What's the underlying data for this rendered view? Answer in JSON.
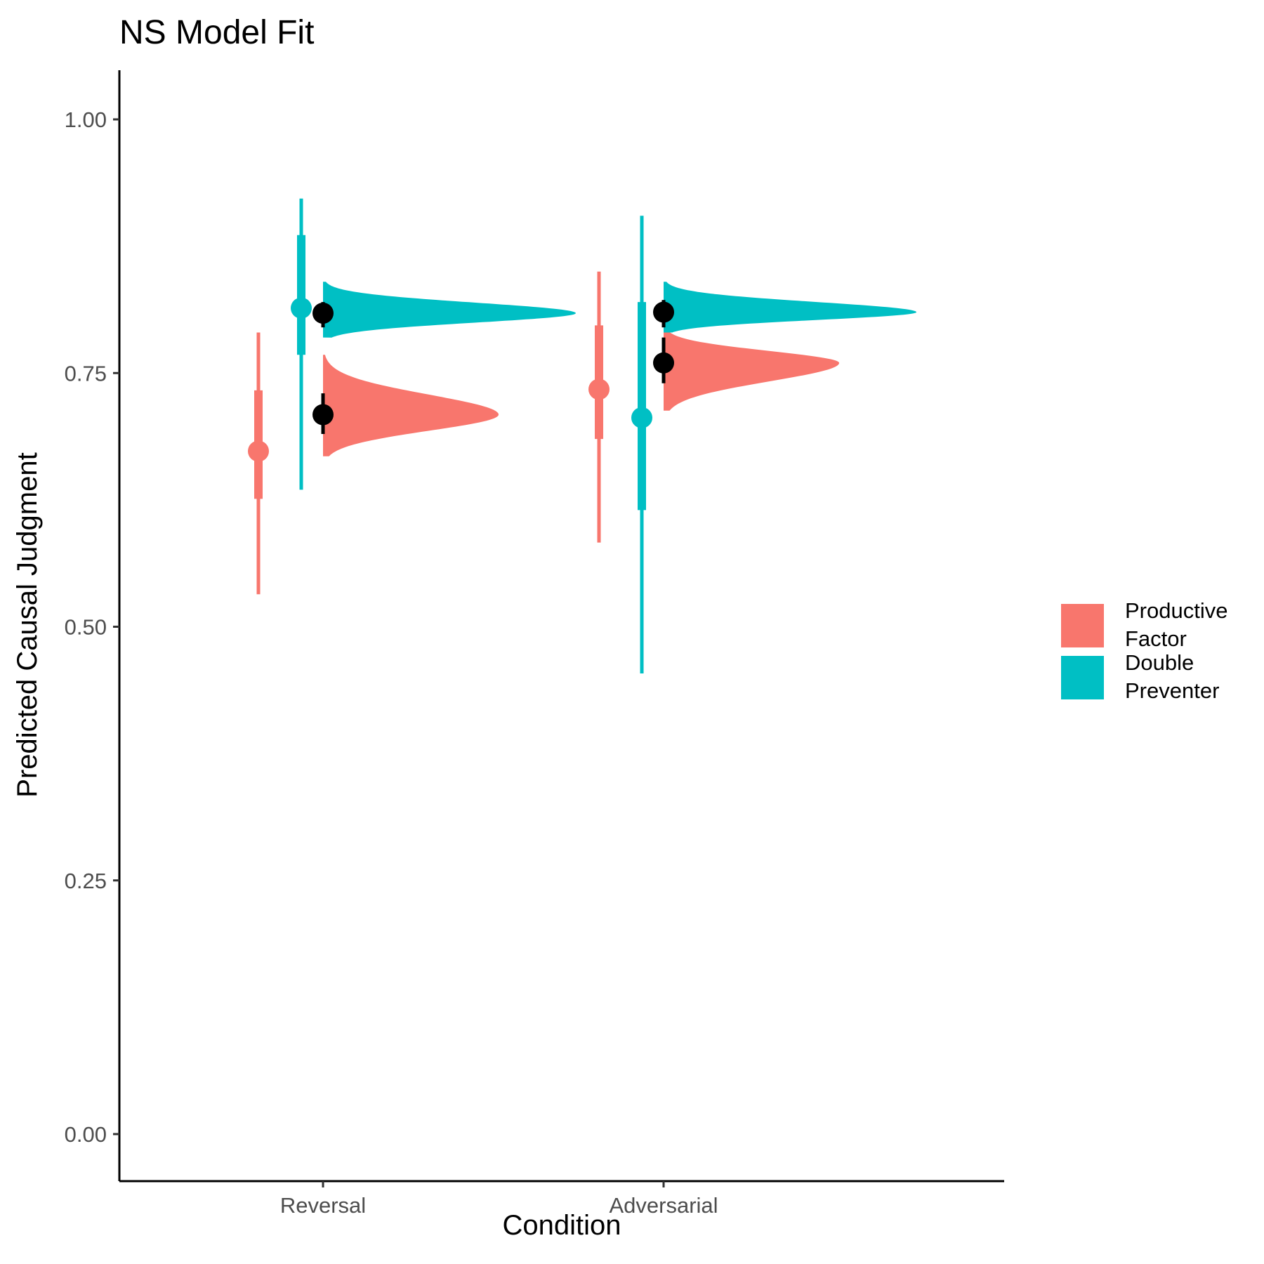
{
  "chart_data": {
    "type": "scatter",
    "title": "NS Model Fit",
    "xlabel": "Condition",
    "ylabel": "Predicted Causal Judgment",
    "ylim": [
      -0.05,
      1.05
    ],
    "yticks": [
      0.0,
      0.25,
      0.5,
      0.75,
      1.0
    ],
    "ytick_labels": [
      "0.00",
      "0.25",
      "0.50",
      "0.75",
      "1.00"
    ],
    "categories": [
      "Reversal",
      "Adversarial"
    ],
    "grid": false,
    "legend": "right",
    "series": [
      {
        "name": "Productive\nFactor",
        "color": "#F8766D",
        "empirical": [
          {
            "condition": "Reversal",
            "mean": 0.673,
            "ci66": [
              0.626,
              0.733
            ],
            "ci95": [
              0.532,
              0.79
            ]
          },
          {
            "condition": "Adversarial",
            "mean": 0.734,
            "ci66": [
              0.685,
              0.797
            ],
            "ci95": [
              0.583,
              0.85
            ]
          }
        ],
        "model": [
          {
            "condition": "Reversal",
            "mean": 0.709,
            "interval": [
              0.69,
              0.73
            ],
            "density_range": [
              0.668,
              0.768
            ],
            "mode": 0.709
          },
          {
            "condition": "Adversarial",
            "mean": 0.76,
            "interval": [
              0.74,
              0.785
            ],
            "density_range": [
              0.713,
              0.795
            ],
            "mode": 0.76
          }
        ]
      },
      {
        "name": "Double\nPreventer",
        "color": "#00BFC4",
        "empirical": [
          {
            "condition": "Reversal",
            "mean": 0.814,
            "ci66": [
              0.768,
              0.886
            ],
            "ci95": [
              0.635,
              0.922
            ]
          },
          {
            "condition": "Adversarial",
            "mean": 0.706,
            "ci66": [
              0.615,
              0.82
            ],
            "ci95": [
              0.454,
              0.905
            ]
          }
        ],
        "model": [
          {
            "condition": "Reversal",
            "mean": 0.809,
            "interval": [
              0.795,
              0.82
            ],
            "density_range": [
              0.785,
              0.84
            ],
            "mode": 0.809
          },
          {
            "condition": "Adversarial",
            "mean": 0.81,
            "interval": [
              0.795,
              0.822
            ],
            "density_range": [
              0.79,
              0.84
            ],
            "mode": 0.81
          }
        ]
      }
    ]
  }
}
